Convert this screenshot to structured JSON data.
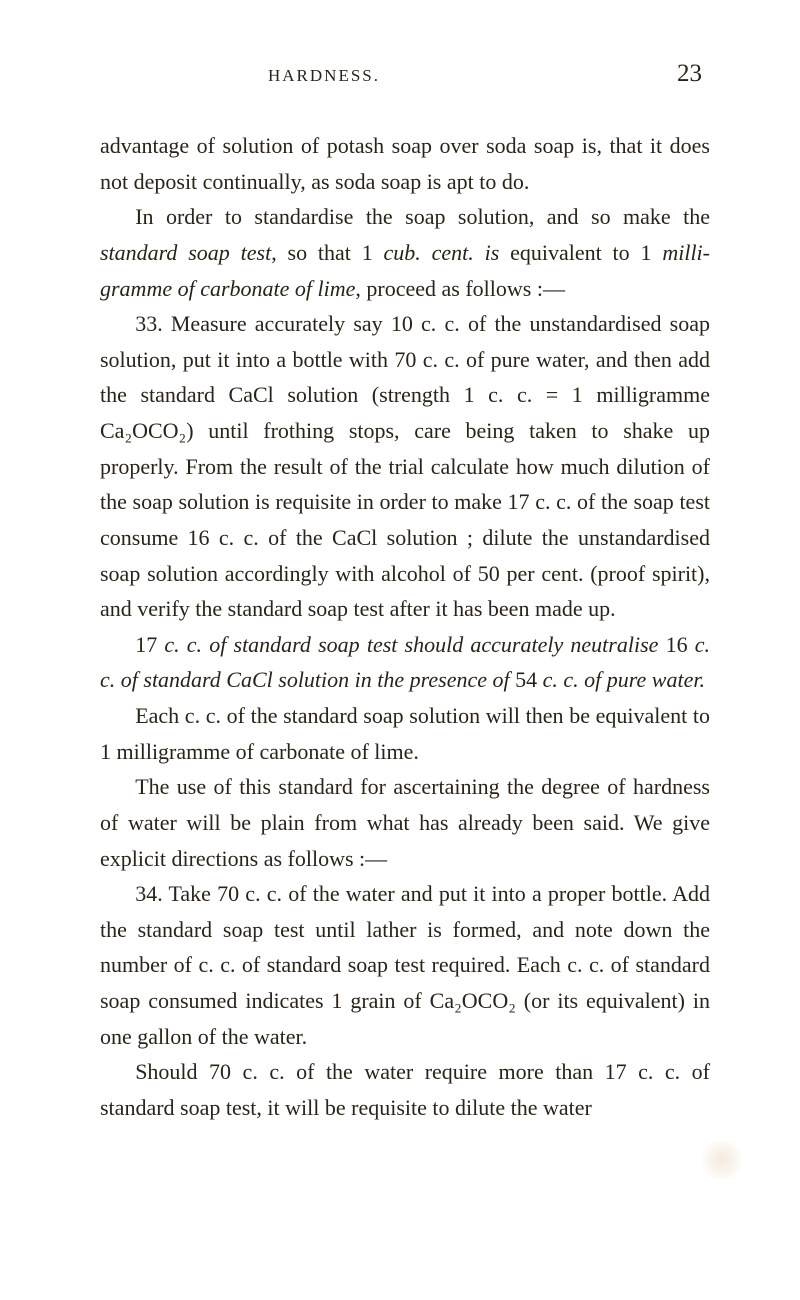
{
  "header": {
    "title": "HARDNESS.",
    "pagenum": "23"
  },
  "paragraphs": {
    "p1a": "advantage of solution of potash soap over soda soap is, that it does not deposit continually, as soda soap is apt to do.",
    "p2_pre": "In order to standardise the soap solution, and so make the ",
    "p2_i1": "standard soap test",
    "p2_mid1": ", so that 1 ",
    "p2_i2": "cub. cent. is",
    "p2_mid2": " equivalent to 1 ",
    "p2_i3": "milli­gramme of carbonate of lime",
    "p2_post": ", proceed as follows :—",
    "p3": "33. Measure accurately say 10 c. c. of the unstandardised soap solution, put it into a bottle with 70 c. c. of pure water, and then add the standard CaCl solution (strength 1 c. c. = 1 milligramme Ca₂OCO₂) until frothing stops, care being taken to shake up properly. From the result of the trial calculate how much dilution of the soap solution is requisite in order to make 17 c. c. of the soap test consume 16 c. c. of the CaCl solution ; dilute the unstandardised soap solution accordingly with alcohol of 50 per cent. (proof spirit), and verify the standard soap test after it has been made up.",
    "p4_pre": "17 ",
    "p4_i": "c. c. of standard soap test should accurately neutralise ",
    "p4_mid1": "16 ",
    "p4_i2": "c. c. of standard CaCl solution in the presence of ",
    "p4_mid2": "54 ",
    "p4_i3": "c. c. of pure water.",
    "p5": "Each c. c. of the standard soap solution will then be equi­valent to 1 milligramme of carbonate of lime.",
    "p6": "The use of this standard for ascertaining the degree of hardness of water will be plain from what has already been said.   We give explicit directions as follows :—",
    "p7": "34. Take 70 c. c. of the water and put it into a proper bottle. Add the standard soap test until lather is formed, and note down the number of c. c. of standard soap test required. Each c. c. of standard soap consumed indicates 1 grain of Ca₂OCO₂ (or its equivalent) in one gallon of the water.",
    "p8": "Should 70 c. c. of the water require more than 17 c. c. of standard soap test, it will be requisite to dilute the water"
  }
}
